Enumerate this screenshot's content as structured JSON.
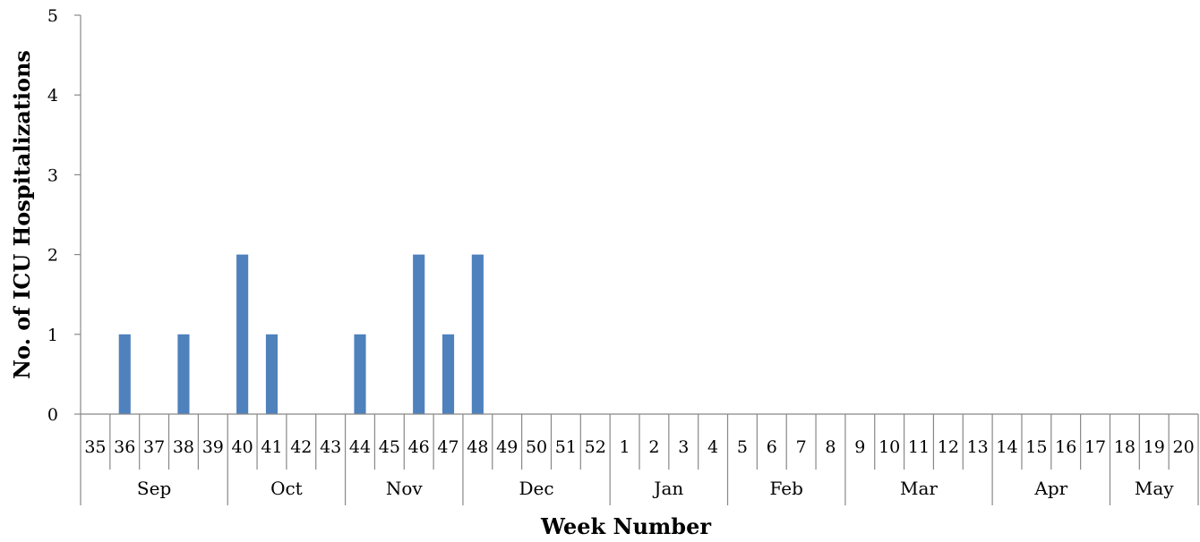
{
  "chart_data": {
    "type": "bar",
    "title": "",
    "xlabel": "Week Number",
    "ylabel": "No. of ICU Hospitalizations",
    "ylim": [
      0,
      5
    ],
    "yticks": [
      "0",
      "1",
      "2",
      "3",
      "4",
      "5"
    ],
    "grid": false,
    "legend": "none",
    "bar_color": "#4F81BD",
    "categories": [
      "35",
      "36",
      "37",
      "38",
      "39",
      "40",
      "41",
      "42",
      "43",
      "44",
      "45",
      "46",
      "47",
      "48",
      "49",
      "50",
      "51",
      "52",
      "1",
      "2",
      "3",
      "4",
      "5",
      "6",
      "7",
      "8",
      "9",
      "10",
      "11",
      "12",
      "13",
      "14",
      "15",
      "16",
      "17",
      "18",
      "19",
      "20"
    ],
    "values": [
      0,
      1,
      0,
      1,
      0,
      2,
      1,
      0,
      0,
      1,
      0,
      2,
      1,
      2,
      0,
      0,
      0,
      0,
      0,
      0,
      0,
      0,
      0,
      0,
      0,
      0,
      0,
      0,
      0,
      0,
      0,
      0,
      0,
      0,
      0,
      0,
      0,
      0
    ],
    "months": [
      {
        "label": "Sep",
        "weeks": 5
      },
      {
        "label": "Oct",
        "weeks": 4
      },
      {
        "label": "Nov",
        "weeks": 4
      },
      {
        "label": "Dec",
        "weeks": 5
      },
      {
        "label": "Jan",
        "weeks": 4
      },
      {
        "label": "Feb",
        "weeks": 4
      },
      {
        "label": "Mar",
        "weeks": 5
      },
      {
        "label": "Apr",
        "weeks": 4
      },
      {
        "label": "May",
        "weeks": 3
      }
    ]
  }
}
